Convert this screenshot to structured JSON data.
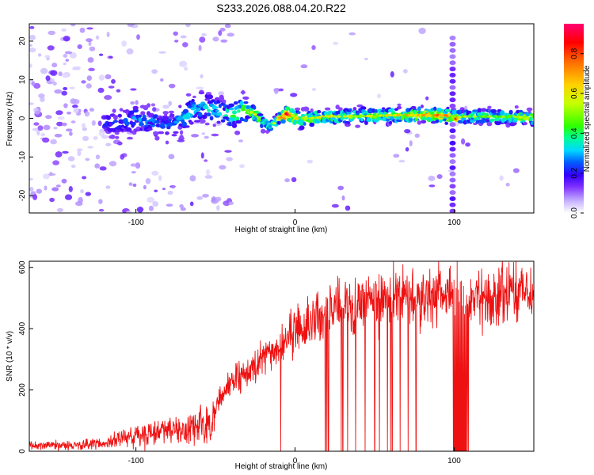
{
  "chart_data": [
    {
      "type": "heatmap",
      "title": "S233.2026.088.04.20.R22",
      "xlabel": "Height of straight line (km)",
      "ylabel": "Frequency (Hz)",
      "xlim": [
        -167,
        150
      ],
      "ylim": [
        -24.5,
        24.5
      ],
      "x_ticks": [
        -100,
        0,
        100
      ],
      "y_ticks": [
        -20,
        -10,
        0,
        10,
        20
      ],
      "colorbar": {
        "label": "Normalized spectral amplitude",
        "range": [
          0,
          0.95
        ],
        "ticks": [
          0.0,
          0.2,
          0.4,
          0.6,
          0.8
        ],
        "colormap": [
          "#ffffff",
          "#c9b7ff",
          "#7d2fff",
          "#3300ff",
          "#0060ff",
          "#00d8ff",
          "#00ff90",
          "#30ff00",
          "#c8ff00",
          "#ffd000",
          "#ff6a00",
          "#ff0000",
          "#ff0070"
        ]
      },
      "ridge": {
        "x": [
          -120,
          -110,
          -100,
          -90,
          -80,
          -70,
          -60,
          -50,
          -40,
          -30,
          -25,
          -20,
          -15,
          -10,
          -5,
          0,
          10,
          20,
          40,
          60,
          80,
          95,
          100,
          105,
          120,
          150
        ],
        "frequency": [
          -2,
          -1,
          0,
          -1,
          -2,
          0,
          3,
          2,
          1,
          2,
          1,
          -1,
          -2,
          0,
          1,
          0,
          0,
          0.5,
          0.5,
          0.8,
          0.8,
          0.8,
          0,
          0.5,
          0.5,
          0.3
        ],
        "peak_amplitude": [
          0.25,
          0.3,
          0.3,
          0.3,
          0.3,
          0.35,
          0.4,
          0.35,
          0.45,
          0.55,
          0.7,
          0.45,
          0.5,
          0.65,
          0.9,
          0.75,
          0.6,
          0.6,
          0.55,
          0.65,
          0.7,
          0.8,
          0.95,
          0.55,
          0.5,
          0.6
        ]
      },
      "vertical_feature": {
        "x": 99,
        "frequency_range": [
          -24,
          22
        ]
      }
    },
    {
      "type": "line",
      "series_name": "SNR",
      "color": "#ee1111",
      "xlabel": "Height of straight line (km)",
      "ylabel": "SNR (10 * v/v)",
      "xlim": [
        -167,
        150
      ],
      "ylim": [
        0,
        620
      ],
      "x_ticks": [
        -100,
        0,
        100
      ],
      "y_ticks": [
        0,
        200,
        400,
        600
      ],
      "trend": {
        "x": [
          -167,
          -140,
          -120,
          -110,
          -100,
          -90,
          -80,
          -70,
          -60,
          -52,
          -48,
          -40,
          -30,
          -20,
          -10,
          0,
          10,
          20,
          30,
          40,
          60,
          80,
          100,
          120,
          150
        ],
        "snr": [
          20,
          20,
          25,
          40,
          55,
          60,
          65,
          70,
          80,
          90,
          170,
          230,
          260,
          300,
          340,
          390,
          420,
          460,
          470,
          480,
          500,
          505,
          510,
          500,
          530
        ]
      },
      "dropouts_x": [
        -9,
        19,
        20,
        21,
        29,
        30,
        33,
        38,
        44,
        50,
        53,
        58,
        60,
        61,
        66,
        71,
        76
      ],
      "dropout_band": [
        99,
        109
      ],
      "spike": {
        "x": 102,
        "snr": 620
      }
    }
  ]
}
